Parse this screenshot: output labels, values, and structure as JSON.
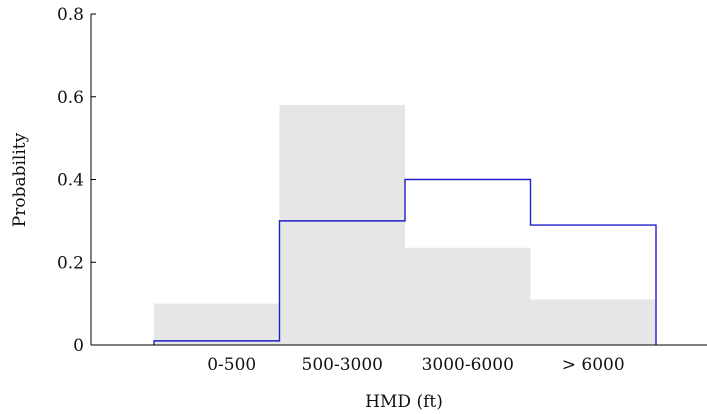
{
  "chart_data": {
    "type": "bar",
    "title": "",
    "xlabel": "HMD (ft)",
    "ylabel": "Probability",
    "categories": [
      "0-500",
      "500-3000",
      "3000-6000",
      "> 6000"
    ],
    "ylim": [
      0,
      0.8
    ],
    "yticks": [
      0,
      0.2,
      0.4,
      0.6,
      0.8
    ],
    "ytick_labels": [
      "0",
      "0.2",
      "0.4",
      "0.6",
      "0.8"
    ],
    "grid": false,
    "legend": "none",
    "series": [
      {
        "style": "filled-bars",
        "color": "#e6e6e6",
        "values": [
          0.1,
          0.58,
          0.235,
          0.11
        ]
      },
      {
        "style": "step-outline",
        "color": "#1f1fc8",
        "values": [
          0.01,
          0.3,
          0.4,
          0.29
        ]
      }
    ]
  }
}
